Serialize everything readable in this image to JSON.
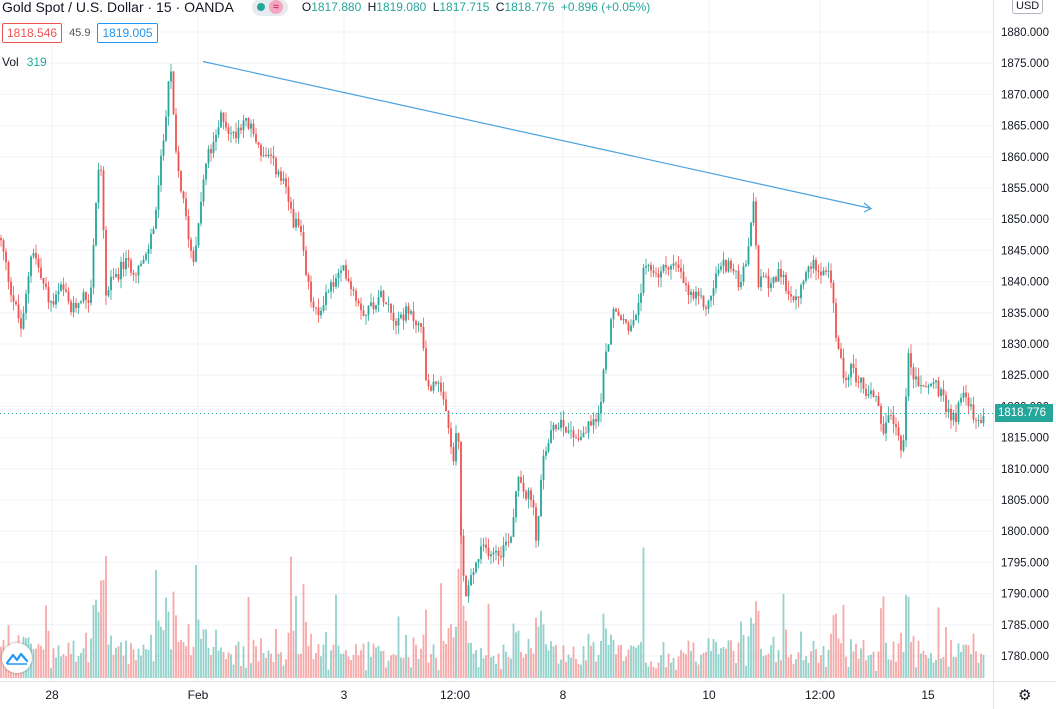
{
  "header": {
    "title": "Gold Spot / U.S. Dollar · 15 · OANDA",
    "ohlc": {
      "o_label": "O",
      "o_value": "1817.880",
      "h_label": "H",
      "h_value": "1819.080",
      "l_label": "L",
      "l_value": "1817.715",
      "c_label": "C",
      "c_value": "1818.776",
      "change": "+0.896 (+0.05%)"
    }
  },
  "trade": {
    "sell_price": "1818.546",
    "spread": "45.9",
    "buy_price": "1819.005"
  },
  "volume": {
    "label": "Vol",
    "value": "319"
  },
  "currency_label": "USD",
  "last_price": "1818.776",
  "colors": {
    "up": "#26a69a",
    "down": "#ef5350",
    "trendline": "#4aa3df",
    "grid": "#f0f3fa"
  },
  "icons": {
    "logo": "tradingview-logo-icon",
    "settings": "gear-icon"
  },
  "chart_data": {
    "type": "candlestick",
    "y_axis": {
      "ticks": [
        "1880.000",
        "1875.000",
        "1870.000",
        "1865.000",
        "1860.000",
        "1855.000",
        "1850.000",
        "1845.000",
        "1840.000",
        "1835.000",
        "1830.000",
        "1825.000",
        "1820.000",
        "1815.000",
        "1810.000",
        "1805.000",
        "1800.000",
        "1795.000",
        "1790.000",
        "1785.000",
        "1780.000"
      ],
      "range": [
        1778,
        1882
      ],
      "scale": "linear"
    },
    "x_axis": {
      "ticks": [
        "28",
        "Feb",
        "3",
        "12:00",
        "8",
        "10",
        "12:00",
        "15"
      ]
    },
    "path": [
      [
        0,
        1847
      ],
      [
        12,
        1838
      ],
      [
        22,
        1832
      ],
      [
        32,
        1846
      ],
      [
        42,
        1840
      ],
      [
        52,
        1836
      ],
      [
        62,
        1839
      ],
      [
        72,
        1835
      ],
      [
        82,
        1838
      ],
      [
        90,
        1837
      ],
      [
        100,
        1862
      ],
      [
        106,
        1838
      ],
      [
        112,
        1840
      ],
      [
        125,
        1843
      ],
      [
        135,
        1842
      ],
      [
        145,
        1843
      ],
      [
        155,
        1850
      ],
      [
        163,
        1862
      ],
      [
        170,
        1875
      ],
      [
        176,
        1860
      ],
      [
        186,
        1850
      ],
      [
        193,
        1843
      ],
      [
        200,
        1852
      ],
      [
        207,
        1860
      ],
      [
        215,
        1862
      ],
      [
        222,
        1867
      ],
      [
        232,
        1863
      ],
      [
        243,
        1866
      ],
      [
        253,
        1864
      ],
      [
        263,
        1860
      ],
      [
        273,
        1859
      ],
      [
        285,
        1855
      ],
      [
        293,
        1850
      ],
      [
        300,
        1848
      ],
      [
        307,
        1840
      ],
      [
        313,
        1836
      ],
      [
        318,
        1834
      ],
      [
        325,
        1838
      ],
      [
        335,
        1840
      ],
      [
        345,
        1842
      ],
      [
        355,
        1838
      ],
      [
        365,
        1835
      ],
      [
        375,
        1837
      ],
      [
        385,
        1838
      ],
      [
        395,
        1834
      ],
      [
        405,
        1835
      ],
      [
        415,
        1834
      ],
      [
        422,
        1832
      ],
      [
        428,
        1822
      ],
      [
        435,
        1825
      ],
      [
        440,
        1822
      ],
      [
        447,
        1818
      ],
      [
        453,
        1811
      ],
      [
        458,
        1817
      ],
      [
        461,
        1799
      ],
      [
        465,
        1789
      ],
      [
        472,
        1793
      ],
      [
        482,
        1797
      ],
      [
        492,
        1797
      ],
      [
        502,
        1797
      ],
      [
        512,
        1800
      ],
      [
        518,
        1810
      ],
      [
        525,
        1806
      ],
      [
        532,
        1805
      ],
      [
        537,
        1798
      ],
      [
        543,
        1812
      ],
      [
        550,
        1815
      ],
      [
        560,
        1818
      ],
      [
        570,
        1816
      ],
      [
        580,
        1815
      ],
      [
        590,
        1817
      ],
      [
        598,
        1818
      ],
      [
        605,
        1827
      ],
      [
        612,
        1835
      ],
      [
        620,
        1834
      ],
      [
        628,
        1833
      ],
      [
        635,
        1833
      ],
      [
        643,
        1841
      ],
      [
        652,
        1842
      ],
      [
        660,
        1841
      ],
      [
        668,
        1843
      ],
      [
        678,
        1842
      ],
      [
        688,
        1838
      ],
      [
        698,
        1837
      ],
      [
        708,
        1836
      ],
      [
        718,
        1842
      ],
      [
        728,
        1843
      ],
      [
        738,
        1840
      ],
      [
        746,
        1842
      ],
      [
        753,
        1853
      ],
      [
        758,
        1840
      ],
      [
        768,
        1840
      ],
      [
        778,
        1841
      ],
      [
        788,
        1839
      ],
      [
        795,
        1836
      ],
      [
        803,
        1840
      ],
      [
        813,
        1843
      ],
      [
        823,
        1842
      ],
      [
        830,
        1841
      ],
      [
        837,
        1830
      ],
      [
        843,
        1825
      ],
      [
        852,
        1826
      ],
      [
        860,
        1824
      ],
      [
        868,
        1822
      ],
      [
        876,
        1822
      ],
      [
        883,
        1816
      ],
      [
        890,
        1818
      ],
      [
        897,
        1816
      ],
      [
        903,
        1813
      ],
      [
        908,
        1828
      ],
      [
        915,
        1824
      ],
      [
        925,
        1823
      ],
      [
        935,
        1824
      ],
      [
        945,
        1820
      ],
      [
        955,
        1818
      ],
      [
        965,
        1823
      ],
      [
        975,
        1817
      ],
      [
        985,
        1819
      ]
    ],
    "trendline": {
      "from": {
        "date": "Feb 1",
        "price": 1875.7
      },
      "to": {
        "date": "Feb 11",
        "price": 1851.3
      }
    }
  }
}
